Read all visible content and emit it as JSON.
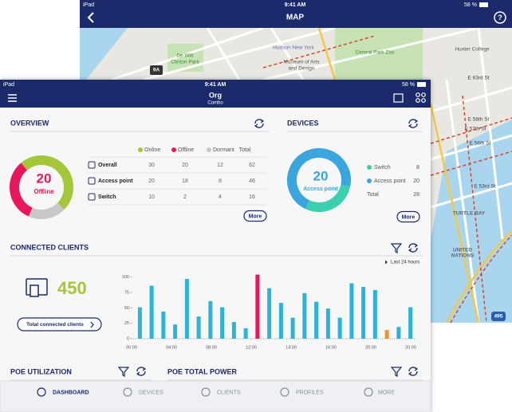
{
  "back_screen": {
    "status": {
      "device": "iPad",
      "time": "9:41 AM",
      "battery": "58 %"
    },
    "title": "MAP",
    "map_labels": [
      "Hudson New York",
      "Museum of Arts",
      "and Design",
      "Central Park Zoo",
      "De Witt",
      "Clinton Park",
      "Hunter College",
      "E 63rd St",
      "E 58th St",
      "E 57th St",
      "E 56th St",
      "E 53rd St",
      "TURTLE BAY",
      "UNITED",
      "NATIONS",
      "9A",
      "495"
    ]
  },
  "front_screen": {
    "status": {
      "device": "iPad",
      "time": "9:41 AM",
      "battery": "58 %"
    },
    "title": "Org",
    "subtitle": "Combo",
    "overview": {
      "title": "OVERVIEW",
      "center_value": 20,
      "center_label": "Offline",
      "columns": [
        "Online",
        "Offline",
        "Dormant",
        "Total"
      ],
      "column_colors": [
        "#a4c639",
        "#e8175d",
        "#c8c8c8",
        null
      ],
      "rows": [
        {
          "name": "Overall",
          "values": [
            30,
            20,
            12,
            62
          ]
        },
        {
          "name": "Access point",
          "values": [
            20,
            18,
            8,
            46
          ]
        },
        {
          "name": "Switch",
          "values": [
            10,
            2,
            4,
            16
          ]
        }
      ],
      "more": "More"
    },
    "devices": {
      "title": "DEVICES",
      "center_value": 20,
      "center_label": "Access point",
      "rows": [
        {
          "name": "Switch",
          "value": 8,
          "color": "#3ccfb0"
        },
        {
          "name": "Access point",
          "value": 20,
          "color": "#3aa6dd"
        },
        {
          "name": "Total",
          "value": 28,
          "color": null
        }
      ],
      "more": "More"
    },
    "clients": {
      "title": "CONNECTED CLIENTS",
      "count": 450,
      "button": "Total connected clients",
      "range": "Last 24 hours",
      "chart": {
        "type": "bar",
        "values": [
          51,
          86,
          44,
          23,
          97,
          36,
          61,
          51,
          27,
          17,
          104,
          82,
          58,
          34,
          74,
          60,
          49,
          34,
          90,
          84,
          79,
          14,
          19,
          51
        ],
        "colors": [
          "#2bb3d8",
          "#2bb3d8",
          "#2bb3d8",
          "#2bb3d8",
          "#2bb3d8",
          "#2bb3d8",
          "#2bb3d8",
          "#2bb3d8",
          "#2bb3d8",
          "#2bb3d8",
          "#e8175d",
          "#2bb3d8",
          "#2bb3d8",
          "#2bb3d8",
          "#2bb3d8",
          "#2bb3d8",
          "#2bb3d8",
          "#2bb3d8",
          "#2bb3d8",
          "#2bb3d8",
          "#2bb3d8",
          "#f0932b",
          "#2bb3d8",
          "#2bb3d8"
        ],
        "ylim": [
          0,
          110
        ],
        "yticks": [
          0,
          25,
          50,
          75,
          100
        ],
        "x_labels": [
          "00:00",
          "04:00",
          "08:00",
          "12:00",
          "14:00",
          "16:00",
          "20:00",
          "20:00"
        ]
      }
    },
    "poe_utilization": {
      "title": "POE UTILIZATION"
    },
    "poe_total_power": {
      "title": "POE TOTAL POWER"
    },
    "nav": [
      "DASHBOARD",
      "DEVICES",
      "CLIENTS",
      "PROFILES",
      "MORE"
    ]
  }
}
